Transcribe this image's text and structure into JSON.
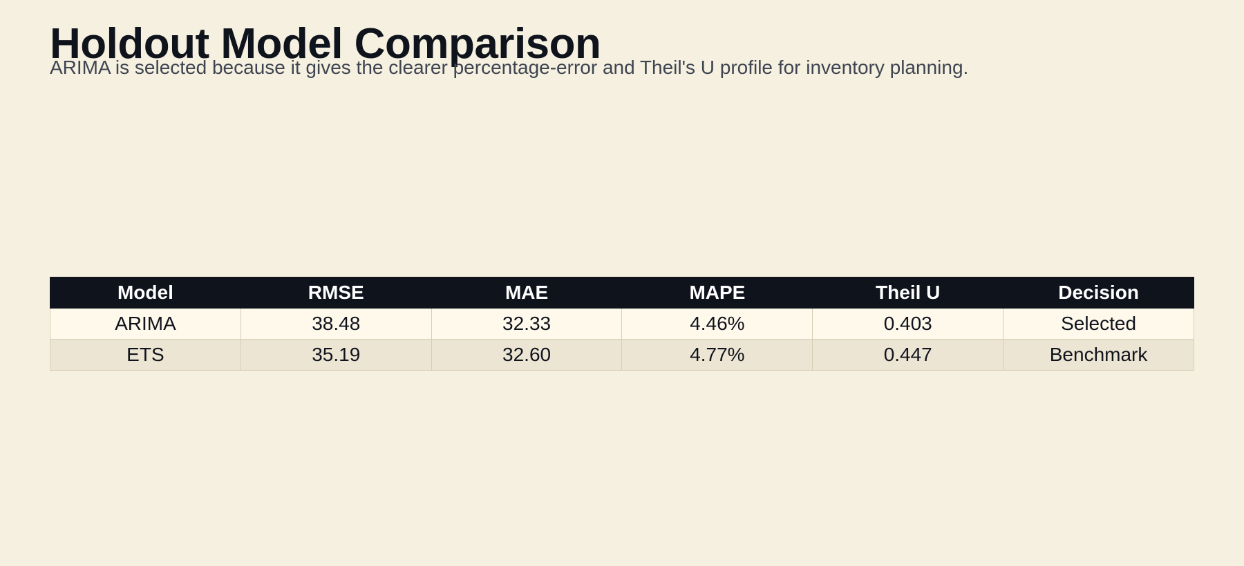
{
  "page": {
    "title": "Holdout Model Comparison",
    "subtitle": "ARIMA is selected because it gives the clearer percentage-error and Theil's U profile for inventory planning.",
    "background_color": "#f5f0e0",
    "header_color": "#0f131c"
  },
  "chart_data": {
    "type": "table",
    "columns": [
      "Model",
      "RMSE",
      "MAE",
      "MAPE",
      "Theil U",
      "Decision"
    ],
    "rows": [
      [
        "ARIMA",
        "38.48",
        "32.33",
        "4.46%",
        "0.403",
        "Selected"
      ],
      [
        "ETS",
        "35.19",
        "32.60",
        "4.77%",
        "0.447",
        "Benchmark"
      ]
    ]
  }
}
